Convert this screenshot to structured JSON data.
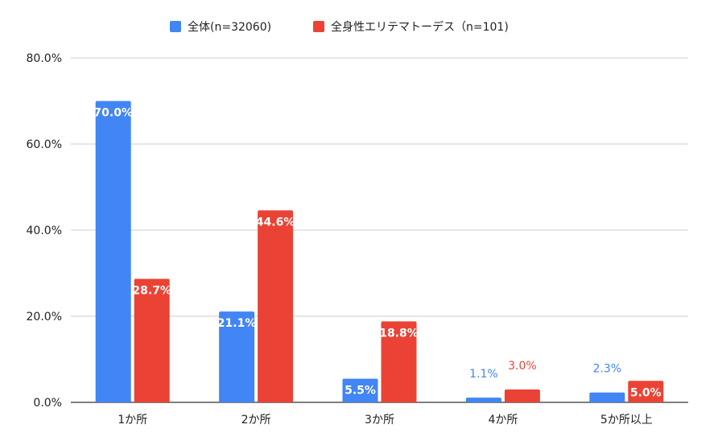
{
  "chart_data": {
    "type": "bar",
    "categories": [
      "1か所",
      "2か所",
      "3か所",
      "4か所",
      "5か所以上"
    ],
    "series": [
      {
        "name": "全体(n=32060)",
        "color": "#4285f4",
        "values": [
          70.0,
          21.1,
          5.5,
          1.1,
          2.3
        ],
        "labels": [
          "70.0%",
          "21.1%",
          "5.5%",
          "1.1%",
          "2.3%"
        ]
      },
      {
        "name": "全身性エリテマトーデス（n=101)",
        "color": "#ea4335",
        "values": [
          28.7,
          44.6,
          18.8,
          3.0,
          5.0
        ],
        "labels": [
          "28.7%",
          "44.6%",
          "18.8%",
          "3.0%",
          "5.0%"
        ]
      }
    ],
    "yticks": [
      "0.0%",
      "20.0%",
      "40.0%",
      "60.0%",
      "80.0%"
    ],
    "ylim": [
      0,
      80
    ],
    "grid": true,
    "legend": "top-center"
  }
}
